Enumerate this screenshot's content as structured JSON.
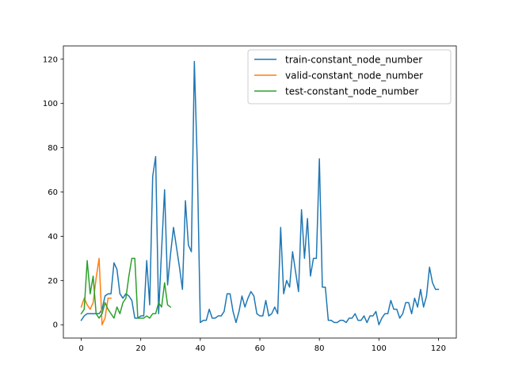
{
  "chart_data": {
    "type": "line",
    "title": "",
    "xlabel": "",
    "ylabel": "",
    "xlim": [
      -6,
      126
    ],
    "ylim": [
      -6,
      126
    ],
    "xticks": [
      0,
      20,
      40,
      60,
      80,
      100,
      120
    ],
    "yticks": [
      0,
      20,
      40,
      60,
      80,
      100,
      120
    ],
    "grid": false,
    "legend_position": "top-right",
    "series": [
      {
        "name": "train-constant_node_number",
        "color": "#1f77b4",
        "y": [
          2,
          4,
          5,
          5,
          5,
          5,
          5,
          7,
          13,
          14,
          14,
          28,
          25,
          14,
          12,
          14,
          13,
          11,
          3,
          3,
          4,
          4,
          29,
          9,
          67,
          76,
          5,
          34,
          61,
          18,
          32,
          44,
          35,
          26,
          16,
          56,
          36,
          33,
          119,
          72,
          1,
          2,
          2,
          7,
          3,
          3,
          4,
          4,
          6,
          14,
          14,
          6,
          1,
          6,
          13,
          8,
          12,
          15,
          13,
          5,
          4,
          4,
          11,
          4,
          5,
          8,
          5,
          44,
          14,
          20,
          17,
          33,
          24,
          15,
          52,
          30,
          48,
          22,
          30,
          30,
          75,
          17,
          17,
          2,
          2,
          1,
          1,
          2,
          2,
          1,
          3,
          3,
          5,
          2,
          2,
          4,
          1,
          4,
          4,
          6,
          0,
          3,
          5,
          5,
          11,
          7,
          7,
          3,
          5,
          10,
          10,
          5,
          12,
          8,
          16,
          8,
          13,
          26,
          19,
          16,
          16
        ]
      },
      {
        "name": "valid-constant_node_number",
        "color": "#ff7f0e",
        "y": [
          8,
          12,
          9,
          7,
          10,
          21,
          30,
          0,
          3,
          12,
          12
        ]
      },
      {
        "name": "test-constant_node_number",
        "color": "#2ca02c",
        "y": [
          5,
          7,
          29,
          14,
          22,
          5,
          3,
          5,
          10,
          7,
          5,
          3,
          8,
          5,
          10,
          12,
          22,
          30,
          30,
          3,
          3,
          3,
          4,
          3,
          5,
          5,
          10,
          8,
          19,
          9,
          8
        ]
      }
    ]
  }
}
